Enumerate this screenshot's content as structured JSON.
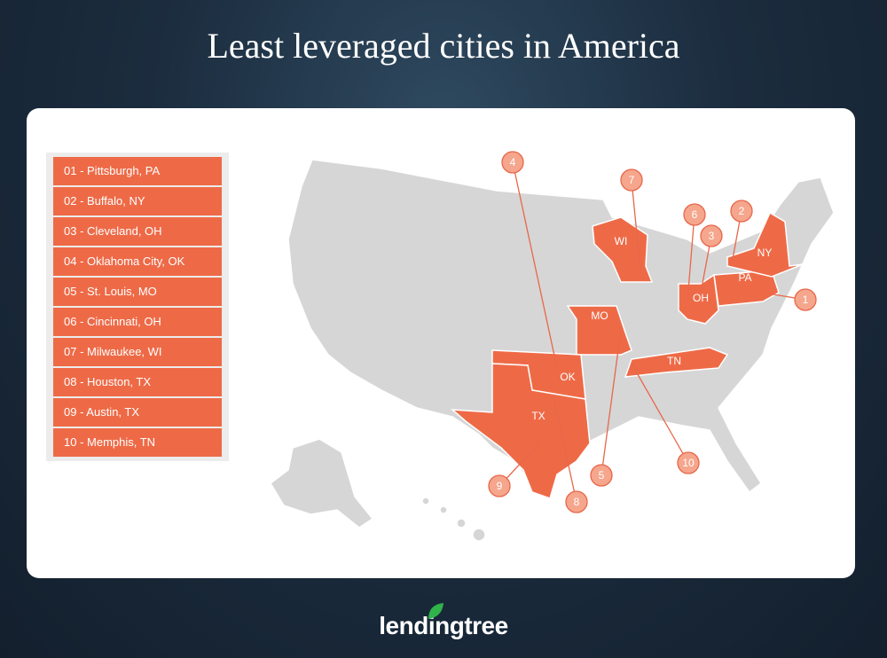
{
  "title": "Least leveraged cities in America",
  "list": [
    "01 - Pittsburgh, PA",
    "02 - Buffalo, NY",
    "03 - Cleveland, OH",
    "04 - Oklahoma City, OK",
    "05 - St. Louis, MO",
    "06 - Cincinnati, OH",
    "07 - Milwaukee, WI",
    "08 - Houston, TX",
    "09 - Austin, TX",
    "10 - Memphis, TN"
  ],
  "map": {
    "state_labels": [
      "WI",
      "NY",
      "OH",
      "PA",
      "MO",
      "OK",
      "TN",
      "TX"
    ],
    "callouts": [
      1,
      2,
      3,
      4,
      5,
      6,
      7,
      8,
      9,
      10
    ]
  },
  "brand": "lendingtree"
}
